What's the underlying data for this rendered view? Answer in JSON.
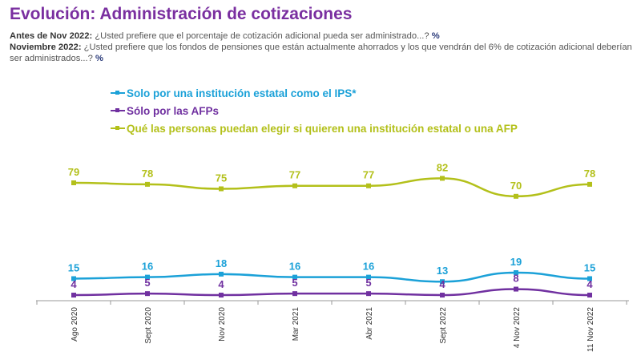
{
  "title": "Evolución: Administración de cotizaciones",
  "questions": [
    {
      "label": "Antes de Nov 2022:",
      "text": "¿Usted prefiere que el porcentaje de cotización adicional pueda ser administrado...?",
      "unit": "%"
    },
    {
      "label": "Noviembre 2022:",
      "text": "¿Usted prefiere que los fondos de pensiones que están actualmente ahorrados y los que vendrán del 6% de cotización adicional deberían ser administrados...?",
      "unit": "%"
    }
  ],
  "chart_data": {
    "type": "line",
    "categories": [
      "Ago 2020",
      "Sept 2020",
      "Nov 2020",
      "Mar 2021",
      "Abr 2021",
      "Sept 2022",
      "4 Nov 2022",
      "11 Nov 2022"
    ],
    "series": [
      {
        "name": "Solo por una institución estatal como el IPS*",
        "color": "#1ba1d8",
        "values": [
          15,
          16,
          18,
          16,
          16,
          13,
          19,
          15
        ]
      },
      {
        "name": "Sólo por las AFPs",
        "color": "#7030a0",
        "values": [
          4,
          5,
          4,
          5,
          5,
          4,
          8,
          4
        ]
      },
      {
        "name": "Qué las personas puedan elegir si quieren una institución estatal o una AFP",
        "color": "#b3c01a",
        "values": [
          79,
          78,
          75,
          77,
          77,
          82,
          70,
          78
        ]
      }
    ],
    "legend_position": "top",
    "grid": false,
    "ylim": [
      0,
      100
    ]
  }
}
